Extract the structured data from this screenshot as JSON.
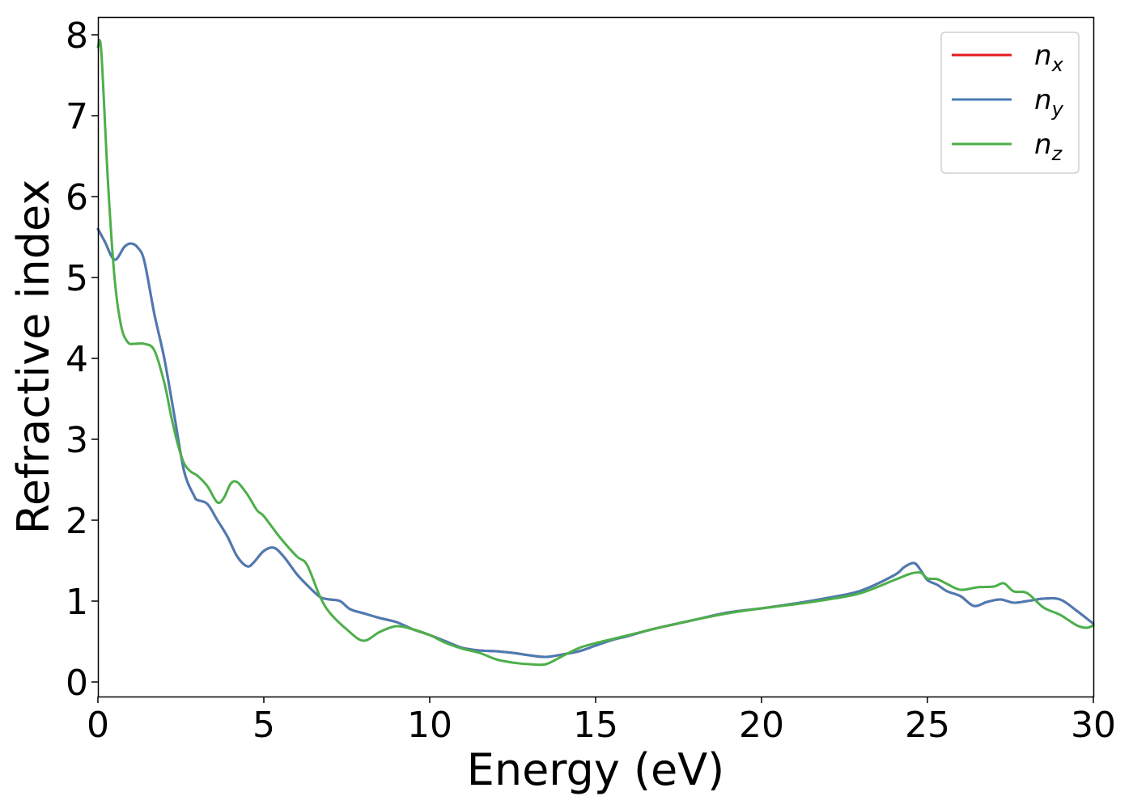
{
  "chart_data": {
    "type": "line",
    "xlabel": "Energy (eV)",
    "ylabel": "Refractive index",
    "xlim": [
      0,
      30
    ],
    "ylim": [
      -0.18,
      8.22
    ],
    "xticks": [
      0,
      5,
      10,
      15,
      20,
      25,
      30
    ],
    "yticks": [
      0,
      1,
      2,
      3,
      4,
      5,
      6,
      7,
      8
    ],
    "grid": false,
    "legend_position": "top-right",
    "series": [
      {
        "name": "n_x",
        "label_base": "n",
        "label_sub": "x",
        "color": "#e41a1c",
        "x": [
          0,
          0.2,
          0.5,
          0.8,
          1.0,
          1.2,
          1.4,
          1.7,
          2.0,
          2.3,
          2.6,
          2.9,
          3.0,
          3.3,
          3.6,
          3.9,
          4.2,
          4.5,
          4.7,
          5.0,
          5.3,
          5.6,
          6.0,
          6.3,
          6.7,
          7.0,
          7.3,
          7.6,
          8.0,
          8.5,
          9.0,
          9.5,
          10.0,
          10.5,
          11.0,
          11.5,
          12.0,
          12.5,
          13.0,
          13.5,
          14.0,
          14.5,
          15.0,
          15.5,
          16.0,
          16.5,
          17.0,
          18.0,
          19.0,
          20.0,
          21.0,
          22.0,
          23.0,
          24.0,
          24.3,
          24.6,
          24.8,
          25.0,
          25.3,
          25.6,
          26.0,
          26.4,
          26.8,
          27.2,
          27.6,
          28.0,
          28.5,
          29.0,
          29.5,
          30.0
        ],
        "y": [
          5.6,
          5.45,
          5.22,
          5.38,
          5.42,
          5.37,
          5.2,
          4.55,
          4.0,
          3.3,
          2.6,
          2.3,
          2.25,
          2.2,
          2.0,
          1.8,
          1.55,
          1.43,
          1.48,
          1.62,
          1.66,
          1.55,
          1.33,
          1.2,
          1.05,
          1.02,
          1.0,
          0.9,
          0.85,
          0.79,
          0.74,
          0.65,
          0.58,
          0.5,
          0.42,
          0.39,
          0.38,
          0.36,
          0.33,
          0.31,
          0.34,
          0.38,
          0.45,
          0.52,
          0.57,
          0.63,
          0.68,
          0.77,
          0.86,
          0.91,
          0.97,
          1.04,
          1.13,
          1.32,
          1.42,
          1.47,
          1.38,
          1.26,
          1.2,
          1.12,
          1.06,
          0.94,
          0.99,
          1.02,
          0.98,
          1.0,
          1.03,
          1.02,
          0.88,
          0.72
        ]
      },
      {
        "name": "n_y",
        "label_base": "n",
        "label_sub": "y",
        "color": "#4a7cb4",
        "x": [
          0,
          0.2,
          0.5,
          0.8,
          1.0,
          1.2,
          1.4,
          1.7,
          2.0,
          2.3,
          2.6,
          2.9,
          3.0,
          3.3,
          3.6,
          3.9,
          4.2,
          4.5,
          4.7,
          5.0,
          5.3,
          5.6,
          6.0,
          6.3,
          6.7,
          7.0,
          7.3,
          7.6,
          8.0,
          8.5,
          9.0,
          9.5,
          10.0,
          10.5,
          11.0,
          11.5,
          12.0,
          12.5,
          13.0,
          13.5,
          14.0,
          14.5,
          15.0,
          15.5,
          16.0,
          16.5,
          17.0,
          18.0,
          19.0,
          20.0,
          21.0,
          22.0,
          23.0,
          24.0,
          24.3,
          24.6,
          24.8,
          25.0,
          25.3,
          25.6,
          26.0,
          26.4,
          26.8,
          27.2,
          27.6,
          28.0,
          28.5,
          29.0,
          29.5,
          30.0
        ],
        "y": [
          5.6,
          5.45,
          5.22,
          5.38,
          5.42,
          5.37,
          5.2,
          4.55,
          4.0,
          3.3,
          2.6,
          2.3,
          2.25,
          2.2,
          2.0,
          1.8,
          1.55,
          1.43,
          1.48,
          1.62,
          1.66,
          1.55,
          1.33,
          1.2,
          1.05,
          1.02,
          1.0,
          0.9,
          0.85,
          0.79,
          0.74,
          0.65,
          0.58,
          0.5,
          0.42,
          0.39,
          0.38,
          0.36,
          0.33,
          0.31,
          0.34,
          0.38,
          0.45,
          0.52,
          0.57,
          0.63,
          0.68,
          0.77,
          0.86,
          0.91,
          0.97,
          1.04,
          1.13,
          1.32,
          1.42,
          1.47,
          1.38,
          1.26,
          1.2,
          1.12,
          1.06,
          0.94,
          0.99,
          1.02,
          0.98,
          1.0,
          1.03,
          1.02,
          0.88,
          0.72
        ]
      },
      {
        "name": "n_z",
        "label_base": "n",
        "label_sub": "z",
        "color": "#4daf4a",
        "x": [
          0,
          0.1,
          0.3,
          0.5,
          0.7,
          0.9,
          1.1,
          1.4,
          1.7,
          2.0,
          2.2,
          2.4,
          2.6,
          2.8,
          3.0,
          3.3,
          3.6,
          3.8,
          4.0,
          4.2,
          4.5,
          4.8,
          5.0,
          5.5,
          6.0,
          6.3,
          6.7,
          7.0,
          7.5,
          8.0,
          8.5,
          9.0,
          9.5,
          10.0,
          10.5,
          11.0,
          11.5,
          12.0,
          12.5,
          13.0,
          13.5,
          14.0,
          14.5,
          15.0,
          15.5,
          16.0,
          16.5,
          17.0,
          18.0,
          19.0,
          20.0,
          21.0,
          22.0,
          23.0,
          24.0,
          24.5,
          24.8,
          25.0,
          25.3,
          25.6,
          26.0,
          26.5,
          27.0,
          27.3,
          27.6,
          28.0,
          28.5,
          29.0,
          29.5,
          29.8,
          30.0
        ],
        "y": [
          7.85,
          7.8,
          6.2,
          5.0,
          4.4,
          4.2,
          4.18,
          4.18,
          4.1,
          3.7,
          3.3,
          2.95,
          2.7,
          2.6,
          2.55,
          2.42,
          2.22,
          2.28,
          2.45,
          2.47,
          2.32,
          2.12,
          2.05,
          1.78,
          1.55,
          1.45,
          1.05,
          0.85,
          0.65,
          0.51,
          0.62,
          0.69,
          0.65,
          0.58,
          0.48,
          0.41,
          0.36,
          0.28,
          0.24,
          0.22,
          0.22,
          0.32,
          0.42,
          0.48,
          0.53,
          0.58,
          0.63,
          0.68,
          0.77,
          0.85,
          0.91,
          0.96,
          1.02,
          1.1,
          1.26,
          1.34,
          1.35,
          1.28,
          1.27,
          1.21,
          1.14,
          1.17,
          1.18,
          1.22,
          1.12,
          1.1,
          0.92,
          0.83,
          0.7,
          0.67,
          0.7
        ]
      }
    ]
  }
}
